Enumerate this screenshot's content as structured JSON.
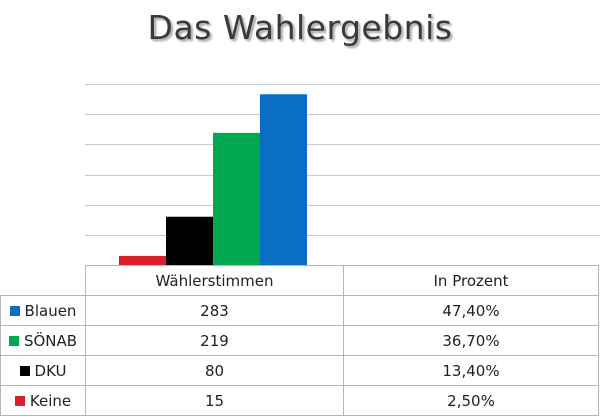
{
  "colors": {
    "Blauen": "#0a6fc4",
    "SÖNAB": "#00a84f",
    "DKU": "#000000",
    "Keine": "#d8202a",
    "grid": "#c8c8c8",
    "text": "#3a3a3a"
  },
  "table": {
    "headers": [
      "Wählerstimmen",
      "In Prozent"
    ],
    "rows": [
      {
        "label": "Blauen",
        "votes": "283",
        "percent": "47,40%"
      },
      {
        "label": "SÖNAB",
        "votes": "219",
        "percent": "36,70%"
      },
      {
        "label": "DKU",
        "votes": "80",
        "percent": "13,40%"
      },
      {
        "label": "Keine",
        "votes": "15",
        "percent": "2,50%"
      }
    ]
  },
  "chart_data": {
    "type": "bar",
    "title": "Das Wahlergebnis",
    "xlabel": "",
    "ylabel": "",
    "categories": [
      "Keine",
      "DKU",
      "SÖNAB",
      "Blauen"
    ],
    "values": [
      15,
      80,
      219,
      283
    ],
    "percent": [
      "2,50%",
      "13,40%",
      "36,70%",
      "47,40%"
    ],
    "ylim": [
      0,
      300
    ],
    "grid": true,
    "axis_labels_shown": false
  }
}
